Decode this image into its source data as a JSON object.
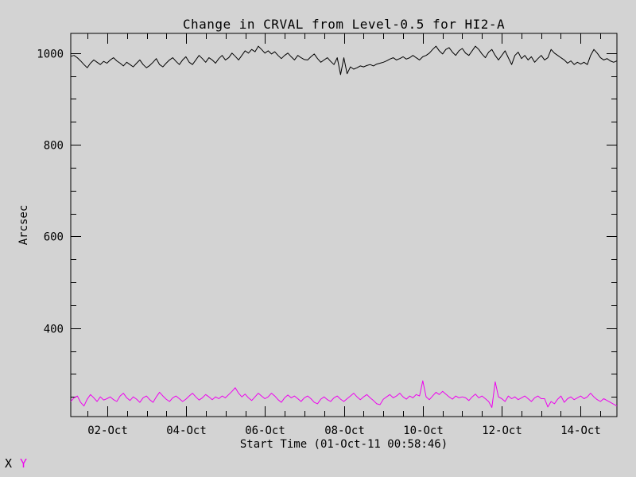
{
  "chart_data": {
    "type": "line",
    "title": "Change in CRVAL from Level-0.5 for HI2-A",
    "xlabel": "Start Time (01-Oct-11 00:58:46)",
    "ylabel": "Arcsec",
    "background_color": "#d3d3d3",
    "axis_color": "#000000",
    "grid": "off",
    "legend_position": "bottom-left-outside",
    "x_unit": "days since 01-Oct-11 00:00",
    "xlim": [
      0.073,
      13.923
    ],
    "ylim": [
      207,
      1043
    ],
    "x_major_ticks": [
      {
        "day": 1,
        "label": "02-Oct"
      },
      {
        "day": 3,
        "label": "04-Oct"
      },
      {
        "day": 5,
        "label": "06-Oct"
      },
      {
        "day": 7,
        "label": "08-Oct"
      },
      {
        "day": 9,
        "label": "10-Oct"
      },
      {
        "day": 11,
        "label": "12-Oct"
      },
      {
        "day": 13,
        "label": "14-Oct"
      }
    ],
    "x_minor_step": 0.5,
    "y_major_ticks": [
      {
        "value": 400,
        "label": "400"
      },
      {
        "value": 600,
        "label": "600"
      },
      {
        "value": 800,
        "label": "800"
      },
      {
        "value": 1000,
        "label": "1000"
      }
    ],
    "y_minor_step": 50,
    "series": [
      {
        "name": "X",
        "color": "#000000",
        "x_start": 0.073,
        "x_end": 13.923,
        "values": [
          993,
          995,
          990,
          983,
          975,
          968,
          978,
          985,
          980,
          975,
          982,
          978,
          985,
          990,
          983,
          978,
          972,
          980,
          975,
          970,
          978,
          985,
          975,
          968,
          973,
          980,
          988,
          975,
          970,
          978,
          985,
          990,
          982,
          975,
          985,
          992,
          980,
          975,
          985,
          995,
          988,
          980,
          990,
          985,
          978,
          988,
          995,
          985,
          990,
          1000,
          993,
          985,
          995,
          1005,
          1000,
          1008,
          1003,
          1015,
          1008,
          1000,
          1005,
          998,
          1003,
          995,
          988,
          995,
          1000,
          992,
          985,
          995,
          990,
          986,
          985,
          992,
          998,
          988,
          980,
          985,
          990,
          982,
          975,
          990,
          953,
          990,
          955,
          970,
          965,
          968,
          972,
          970,
          973,
          975,
          972,
          976,
          978,
          980,
          983,
          987,
          990,
          985,
          988,
          992,
          987,
          990,
          995,
          990,
          985,
          992,
          995,
          1000,
          1008,
          1015,
          1005,
          998,
          1008,
          1012,
          1002,
          995,
          1005,
          1010,
          1000,
          995,
          1005,
          1015,
          1008,
          998,
          990,
          1002,
          1008,
          995,
          985,
          995,
          1005,
          990,
          975,
          995,
          1002,
          988,
          995,
          985,
          992,
          980,
          988,
          995,
          985,
          990,
          1008,
          1000,
          995,
          990,
          985,
          978,
          983,
          975,
          980,
          976,
          980,
          975,
          995,
          1008,
          1000,
          990,
          985,
          988,
          983,
          980,
          983
        ]
      },
      {
        "name": "Y",
        "color": "#ee00ee",
        "x_start": 0.073,
        "x_end": 13.923,
        "values": [
          240,
          248,
          252,
          238,
          230,
          245,
          255,
          248,
          240,
          250,
          243,
          246,
          250,
          244,
          240,
          252,
          258,
          248,
          242,
          250,
          245,
          238,
          248,
          252,
          244,
          238,
          250,
          260,
          252,
          245,
          240,
          248,
          252,
          246,
          240,
          245,
          252,
          258,
          250,
          243,
          248,
          255,
          250,
          244,
          250,
          246,
          252,
          248,
          255,
          262,
          270,
          258,
          250,
          256,
          248,
          242,
          250,
          258,
          252,
          246,
          250,
          258,
          252,
          244,
          238,
          248,
          254,
          248,
          252,
          246,
          240,
          248,
          252,
          246,
          238,
          235,
          245,
          250,
          244,
          240,
          248,
          252,
          245,
          240,
          246,
          252,
          258,
          250,
          244,
          250,
          255,
          248,
          242,
          235,
          233,
          245,
          250,
          255,
          248,
          252,
          258,
          250,
          245,
          252,
          248,
          255,
          252,
          285,
          250,
          244,
          252,
          260,
          255,
          262,
          256,
          250,
          245,
          252,
          248,
          250,
          248,
          242,
          250,
          256,
          248,
          252,
          246,
          240,
          227,
          283,
          250,
          246,
          240,
          252,
          246,
          250,
          244,
          248,
          252,
          246,
          240,
          248,
          252,
          246,
          246,
          228,
          240,
          235,
          245,
          252,
          238,
          246,
          250,
          244,
          248,
          252,
          246,
          250,
          258,
          250,
          244,
          240,
          246,
          242,
          238,
          234,
          230
        ]
      }
    ]
  },
  "legend": {
    "entries": [
      {
        "label": "X",
        "color": "#000000"
      },
      {
        "label": "Y",
        "color": "#ee00ee"
      }
    ]
  }
}
